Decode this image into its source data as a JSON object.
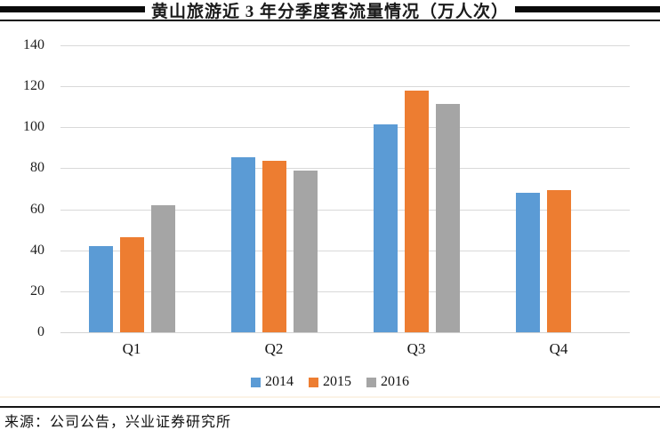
{
  "header": {
    "title": "黄山旅游近 3 年分季度客流量情况（万人次）"
  },
  "chart_data": {
    "type": "bar",
    "title": "黄山旅游近 3 年分季度客流量情况（万人次）",
    "categories": [
      "Q1",
      "Q2",
      "Q3",
      "Q4"
    ],
    "series": [
      {
        "name": "2014",
        "color": "#5B9BD5",
        "values": [
          42,
          85.5,
          101.5,
          68
        ]
      },
      {
        "name": "2015",
        "color": "#ED7D31",
        "values": [
          46.5,
          83.5,
          118,
          69.5
        ]
      },
      {
        "name": "2016",
        "color": "#A5A5A5",
        "values": [
          62,
          79,
          111.5,
          null
        ]
      }
    ],
    "xlabel": "",
    "ylabel": "",
    "ylim": [
      0,
      140
    ],
    "yticks": [
      0,
      20,
      40,
      60,
      80,
      100,
      120,
      140
    ],
    "grid": true,
    "legend_position": "bottom"
  },
  "footer": {
    "source": "来源：公司公告，兴业证券研究所"
  }
}
